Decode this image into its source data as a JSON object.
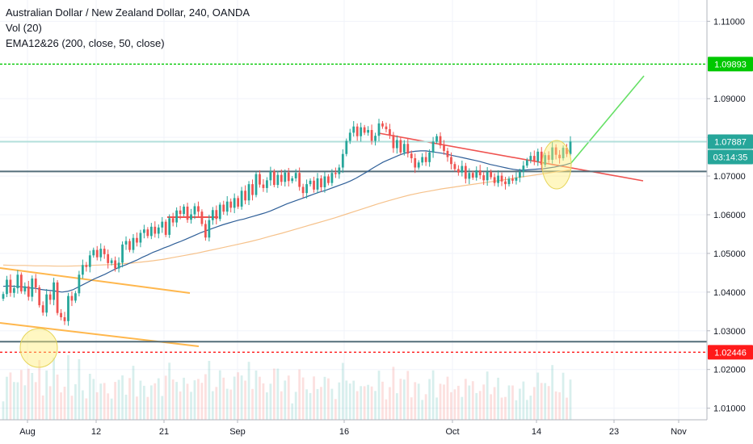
{
  "legend": {
    "title": "Australian Dollar / New Zealand Dollar, 240, OANDA",
    "volume": "Vol (20)",
    "ema": "EMA12&26 (200, close, 50, close)"
  },
  "chart_data": {
    "type": "candlestick",
    "symbol": "AUDNZD",
    "y_axis": {
      "ticks": [
        1.11,
        1.09,
        1.08,
        1.07,
        1.06,
        1.05,
        1.04,
        1.03,
        1.02,
        1.01
      ],
      "tick_labels": [
        "1.11000",
        "1.09000",
        "1.08000",
        "1.07000",
        "1.06000",
        "1.05000",
        "1.04000",
        "1.03000",
        "1.02000",
        "1.01000"
      ],
      "range": [
        1.007,
        1.1155
      ]
    },
    "x_axis": {
      "tick_labels": [
        "Aug",
        "12",
        "21",
        "Sep",
        "16",
        "Oct",
        "14",
        "23",
        "Nov"
      ]
    },
    "price_markers": [
      {
        "label": "1.09893",
        "value": 1.09893,
        "color": "#00c800"
      },
      {
        "label": "1.07887",
        "value": 1.07887,
        "color": "#26a69a"
      },
      {
        "label": "03:14:35",
        "value": 1.07887,
        "color": "#26a69a"
      },
      {
        "label": "1.02446",
        "value": 1.02446,
        "color": "#ff1a1a"
      }
    ],
    "horizontal_lines": [
      {
        "value": 1.09893,
        "color": "#00c800",
        "style": "dashed"
      },
      {
        "value": 1.0712,
        "color": "#546e7a",
        "style": "solid"
      },
      {
        "value": 1.0272,
        "color": "#546e7a",
        "style": "solid"
      },
      {
        "value": 1.02446,
        "color": "#ff1a1a",
        "style": "dotted"
      },
      {
        "value": 1.07887,
        "color": "#b2dfdb",
        "style": "solid"
      }
    ],
    "candles": [
      1.0395,
      1.0432,
      1.0398,
      1.041,
      1.0445,
      1.0402,
      1.0415,
      1.0388,
      1.0435,
      1.0412,
      1.0366,
      1.0347,
      1.0394,
      1.038,
      1.0425,
      1.0346,
      1.0335,
      1.0325,
      1.039,
      1.0378,
      1.0397,
      1.0445,
      1.047,
      1.0465,
      1.0495,
      1.0509,
      1.049,
      1.0512,
      1.0498,
      1.0475,
      1.0482,
      1.0461,
      1.0476,
      1.0523,
      1.0532,
      1.0509,
      1.054,
      1.0528,
      1.0553,
      1.0562,
      1.0545,
      1.0569,
      1.0551,
      1.0567,
      1.0582,
      1.0548,
      1.0591,
      1.058,
      1.0611,
      1.0602,
      1.0621,
      1.0587,
      1.0601,
      1.0622,
      1.0608,
      1.0576,
      1.0541,
      1.0586,
      1.0612,
      1.0589,
      1.0626,
      1.0608,
      1.0634,
      1.0618,
      1.0643,
      1.0621,
      1.0662,
      1.0637,
      1.0679,
      1.0651,
      1.0705,
      1.0678,
      1.0669,
      1.0689,
      1.0712,
      1.0677,
      1.0703,
      1.0685,
      1.0709,
      1.0687,
      1.0694,
      1.0708,
      1.0672,
      1.0656,
      1.0679,
      1.0688,
      1.0665,
      1.0694,
      1.0671,
      1.0699,
      1.0682,
      1.0708,
      1.0705,
      1.0722,
      1.0757,
      1.0791,
      1.0812,
      1.0828,
      1.0803,
      1.0826,
      1.0812,
      1.0819,
      1.0791,
      1.0804,
      1.0836,
      1.0828,
      1.0821,
      1.0806,
      1.0772,
      1.0793,
      1.0761,
      1.0783,
      1.0758,
      1.0746,
      1.0722,
      1.0735,
      1.0749,
      1.0736,
      1.0761,
      1.0789,
      1.0803,
      1.0779,
      1.0765,
      1.0749,
      1.0731,
      1.0718,
      1.0709,
      1.0726,
      1.0693,
      1.0708,
      1.0696,
      1.0715,
      1.0702,
      1.0689,
      1.0711,
      1.0697,
      1.0682,
      1.0701,
      1.0686,
      1.0679,
      1.0693,
      1.0688,
      1.0696,
      1.0711,
      1.0727,
      1.0741,
      1.0752,
      1.0738,
      1.0763,
      1.0729,
      1.0754,
      1.0742,
      1.0774,
      1.0755,
      1.0746,
      1.0773,
      1.0757,
      1.0789
    ],
    "ema_50": [
      1.0415,
      1.0416,
      1.0415,
      1.0414,
      1.0413,
      1.0411,
      1.041,
      1.0407,
      1.0405,
      1.0404,
      1.0402,
      1.04,
      1.0402,
      1.0406,
      1.0413,
      1.042,
      1.0427,
      1.0434,
      1.044,
      1.0446,
      1.0453,
      1.046,
      1.0466,
      1.0471,
      1.0477,
      1.0483,
      1.049,
      1.0496,
      1.0503,
      1.0508,
      1.0514,
      1.0519,
      1.0525,
      1.053,
      1.0536,
      1.0542,
      1.0548,
      1.0554,
      1.0559,
      1.0564,
      1.0569,
      1.0574,
      1.0578,
      1.0582,
      1.0586,
      1.0589,
      1.0593,
      1.0597,
      1.0601,
      1.0605,
      1.061,
      1.0616,
      1.0622,
      1.0628,
      1.0633,
      1.0638,
      1.0643,
      1.0648,
      1.0653,
      1.0658,
      1.0662,
      1.0667,
      1.0672,
      1.0677,
      1.0682,
      1.0688,
      1.0695,
      1.0703,
      1.0711,
      1.072,
      1.0728,
      1.0736,
      1.0742,
      1.0748,
      1.0754,
      1.0759,
      1.0762,
      1.0764,
      1.0765,
      1.0765,
      1.0763,
      1.0761,
      1.0759,
      1.0756,
      1.0753,
      1.075,
      1.0747,
      1.0744,
      1.0741,
      1.0738,
      1.0734,
      1.073,
      1.0727,
      1.0724,
      1.0721,
      1.0718,
      1.0716,
      1.0715,
      1.0716,
      1.0717,
      1.0718,
      1.0719,
      1.0721,
      1.0723,
      1.0726,
      1.0729,
      1.0733
    ],
    "ema_200": [
      1.047,
      1.0469,
      1.0469,
      1.0468,
      1.0468,
      1.0467,
      1.0467,
      1.0468,
      1.0469,
      1.047,
      1.0471,
      1.0473,
      1.0475,
      1.0478,
      1.0481,
      1.0485,
      1.049,
      1.0495,
      1.05,
      1.0506,
      1.0512,
      1.0518,
      1.0524,
      1.053,
      1.0537,
      1.0545,
      1.0552,
      1.056,
      1.0568,
      1.0576,
      1.0584,
      1.0592,
      1.0601,
      1.061,
      1.0619,
      1.0628,
      1.0636,
      1.0644,
      1.0651,
      1.0657,
      1.0662,
      1.0667,
      1.0671,
      1.0675,
      1.0679,
      1.0683,
      1.0687,
      1.0691,
      1.0696,
      1.07,
      1.0704,
      1.0708,
      1.0712,
      1.0716
    ]
  }
}
